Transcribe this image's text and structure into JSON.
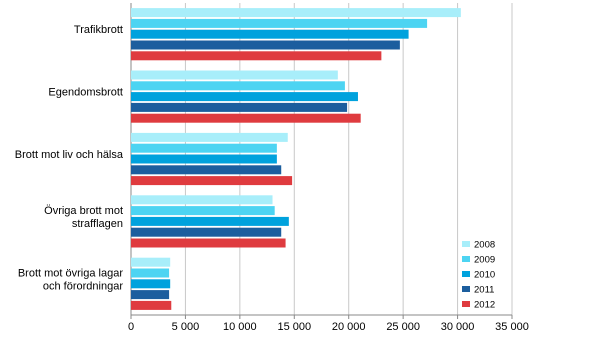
{
  "chart_data": {
    "type": "hbar",
    "categories": [
      "Trafikbrott",
      "Egendomsbrott",
      "Brott mot liv och hälsa",
      "Övriga brott mot\nstrafflagen",
      "Brott mot övriga lagar\noch förordningar"
    ],
    "series": [
      {
        "name": "2008",
        "color": "#a8eefa",
        "values": [
          30300,
          19000,
          14400,
          13000,
          3600
        ]
      },
      {
        "name": "2009",
        "color": "#4dd4f2",
        "values": [
          27200,
          19650,
          13400,
          13200,
          3500
        ]
      },
      {
        "name": "2010",
        "color": "#00a2dd",
        "values": [
          25500,
          20850,
          13400,
          14500,
          3600
        ]
      },
      {
        "name": "2011",
        "color": "#1c5e9e",
        "values": [
          24700,
          19850,
          13800,
          13800,
          3500
        ]
      },
      {
        "name": "2012",
        "color": "#df3b3f",
        "values": [
          23000,
          21100,
          14800,
          14200,
          3700
        ]
      }
    ],
    "xlim": [
      0,
      35000
    ],
    "xticks": [
      0,
      {
        "value": 5000,
        "label": "5 000"
      },
      {
        "value": 10000,
        "label": "10 000"
      },
      {
        "value": 15000,
        "label": "15 000"
      },
      {
        "value": 20000,
        "label": "20 000"
      },
      {
        "value": 25000,
        "label": "25 000"
      },
      {
        "value": 30000,
        "label": "30 000"
      },
      {
        "value": 35000,
        "label": "35 000"
      }
    ],
    "grid": true,
    "legend": "lower-right"
  }
}
